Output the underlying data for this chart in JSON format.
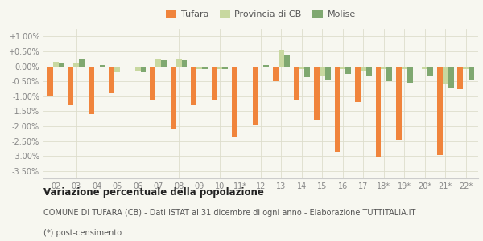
{
  "categories": [
    "02",
    "03",
    "04",
    "05",
    "06",
    "07",
    "08",
    "09",
    "10",
    "11*",
    "12",
    "13",
    "14",
    "15",
    "16",
    "17",
    "18*",
    "19*",
    "20*",
    "21*",
    "22*"
  ],
  "tufara": [
    -1.0,
    -1.3,
    -1.6,
    -0.9,
    -0.05,
    -1.15,
    -2.1,
    -1.3,
    -1.1,
    -2.35,
    -1.95,
    -0.5,
    -1.1,
    -1.8,
    -2.85,
    -1.2,
    -3.05,
    -2.45,
    -0.05,
    -2.95,
    -0.75
  ],
  "provincia": [
    0.15,
    0.1,
    0.0,
    -0.2,
    -0.15,
    0.25,
    0.25,
    -0.1,
    -0.1,
    -0.05,
    -0.05,
    0.55,
    -0.1,
    -0.3,
    -0.1,
    -0.15,
    -0.1,
    -0.1,
    -0.1,
    -0.6,
    -0.1
  ],
  "molise": [
    0.1,
    0.25,
    0.05,
    -0.05,
    -0.2,
    0.2,
    0.2,
    -0.1,
    -0.1,
    -0.05,
    0.05,
    0.4,
    -0.35,
    -0.45,
    -0.25,
    -0.3,
    -0.5,
    -0.55,
    -0.3,
    -0.7,
    -0.45
  ],
  "tufara_color": "#f0843c",
  "provincia_color": "#c8d8a0",
  "molise_color": "#7fa870",
  "bg_color": "#f7f7f0",
  "grid_color": "#ddddcc",
  "ylim": [
    -3.75,
    1.25
  ],
  "yticks": [
    -3.5,
    -3.0,
    -2.5,
    -2.0,
    -1.5,
    -1.0,
    -0.5,
    0.0,
    0.5,
    1.0
  ],
  "title_bold": "Variazione percentuale della popolazione",
  "footer1": "COMUNE DI TUFARA (CB) - Dati ISTAT al 31 dicembre di ogni anno - Elaborazione TUTTITALIA.IT",
  "footer2": "(*) post-censimento",
  "legend_labels": [
    "Tufara",
    "Provincia di CB",
    "Molise"
  ],
  "bar_width": 0.27,
  "title_fontsize": 8.5,
  "footer_fontsize": 7.0,
  "legend_fontsize": 8.0,
  "tick_fontsize": 7.0,
  "ytick_fontsize": 7.0
}
